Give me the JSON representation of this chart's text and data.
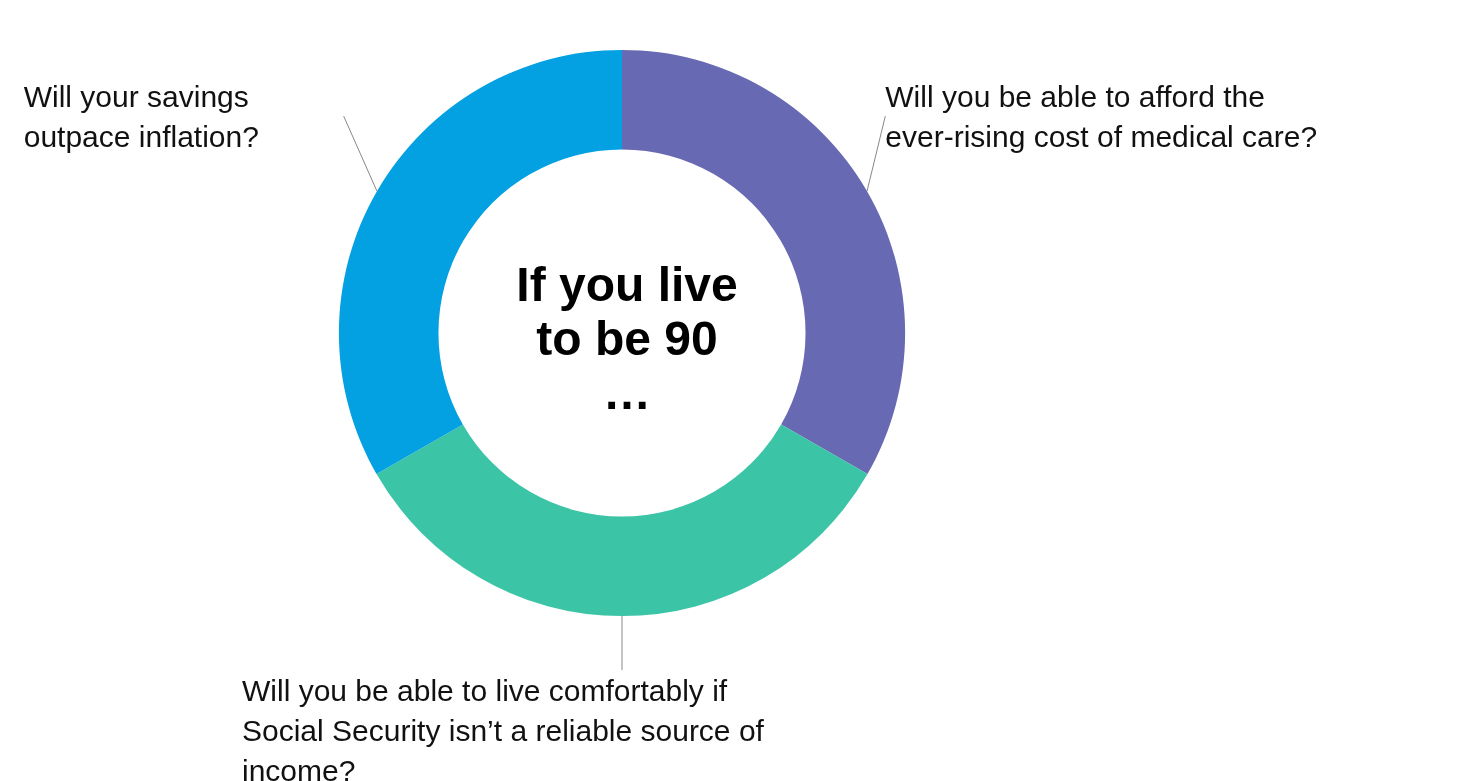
{
  "chart_data": {
    "type": "donut",
    "title": "If you live to be 90 …",
    "categories": [
      "Will you be able to afford the ever-rising cost of medical care?",
      "Will you be able to live comfortably if Social Security isn’t a reliable source of income?",
      "Will your savings outpace inflation?"
    ],
    "values": [
      33.3,
      33.4,
      33.3
    ],
    "colors": [
      "#6769b3",
      "#3cc4a6",
      "#03a0e2"
    ],
    "legend": false
  }
}
